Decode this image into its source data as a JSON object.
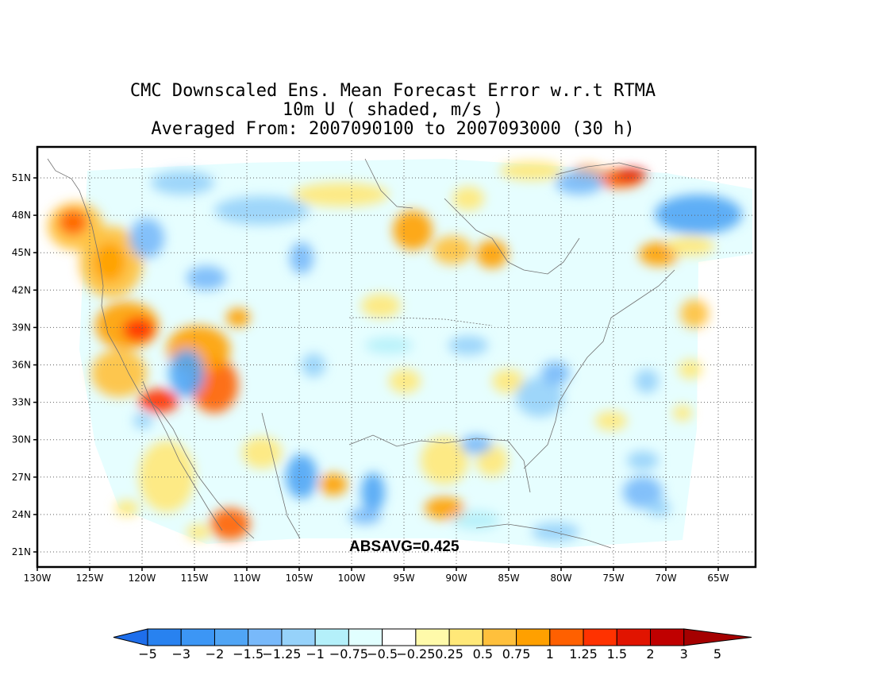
{
  "title": {
    "line1": "CMC Downscaled Ens. Mean Forecast Error w.r.t RTMA",
    "line2": "10m U ( shaded, m/s )",
    "line3": "Averaged From: 2007090100 to 2007093000 (30 h)"
  },
  "map": {
    "lon_labels": [
      "130W",
      "125W",
      "120W",
      "115W",
      "110W",
      "105W",
      "100W",
      "95W",
      "90W",
      "85W",
      "80W",
      "75W",
      "70W",
      "65W"
    ],
    "lat_labels": [
      "51N",
      "48N",
      "45N",
      "42N",
      "39N",
      "36N",
      "33N",
      "30N",
      "27N",
      "24N",
      "21N"
    ],
    "lon_range": [
      -130,
      -62
    ],
    "lat_range": [
      20,
      52
    ],
    "grid": "dotted",
    "stat_text": "ABSAVG=0.425"
  },
  "colorbar": {
    "labels": [
      "−5",
      "−3",
      "−2",
      "−1.5",
      "−1.25",
      "−1",
      "−0.75",
      "−0.5",
      "−0.25",
      "0.25",
      "0.5",
      "0.75",
      "1",
      "1.25",
      "1.5",
      "2",
      "3",
      "5"
    ],
    "colors": [
      "#1e6eeb",
      "#2882f0",
      "#3c96f5",
      "#50a5f5",
      "#78b9fa",
      "#96d2fa",
      "#b4f0fa",
      "#e1ffff",
      "#ffffff",
      "#fffaaa",
      "#ffe878",
      "#ffc03c",
      "#ffa000",
      "#ff6000",
      "#ff3200",
      "#e11400",
      "#c00000",
      "#a50000"
    ]
  }
}
